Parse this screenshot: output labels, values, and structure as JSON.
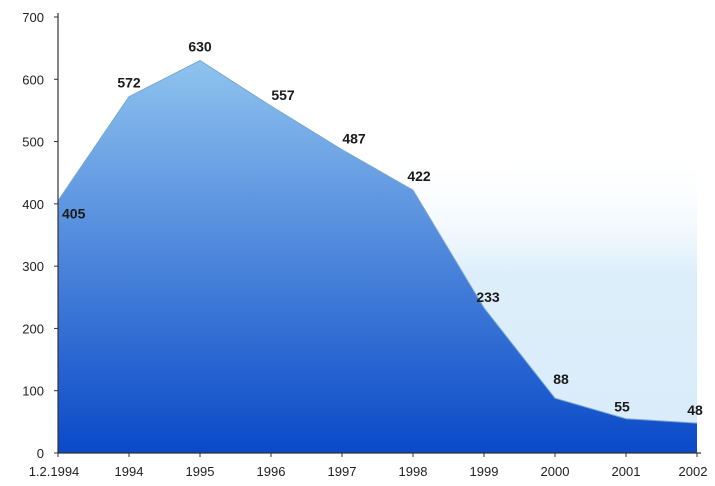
{
  "chart_data": {
    "type": "area",
    "title": "",
    "xlabel": "",
    "ylabel": "",
    "categories": [
      "1.2.1994",
      "1994",
      "1995",
      "1996",
      "1997",
      "1998",
      "1999",
      "2000",
      "2001",
      "2002"
    ],
    "values": [
      405,
      572,
      630,
      557,
      487,
      422,
      233,
      88,
      55,
      48
    ],
    "data_labels": [
      "405",
      "572",
      "630",
      "557",
      "487",
      "422",
      "233",
      "88",
      "55",
      "48"
    ],
    "ylim": [
      0,
      700
    ],
    "yticks": [
      "0",
      "100",
      "200",
      "300",
      "400",
      "500",
      "600",
      "700"
    ],
    "grid": false,
    "legend": "none",
    "colors": {
      "fill_top": "#8fc3ee",
      "fill_bottom": "#0a49c8",
      "backdrop": "#d9ecfa",
      "axis": "#333333"
    }
  }
}
